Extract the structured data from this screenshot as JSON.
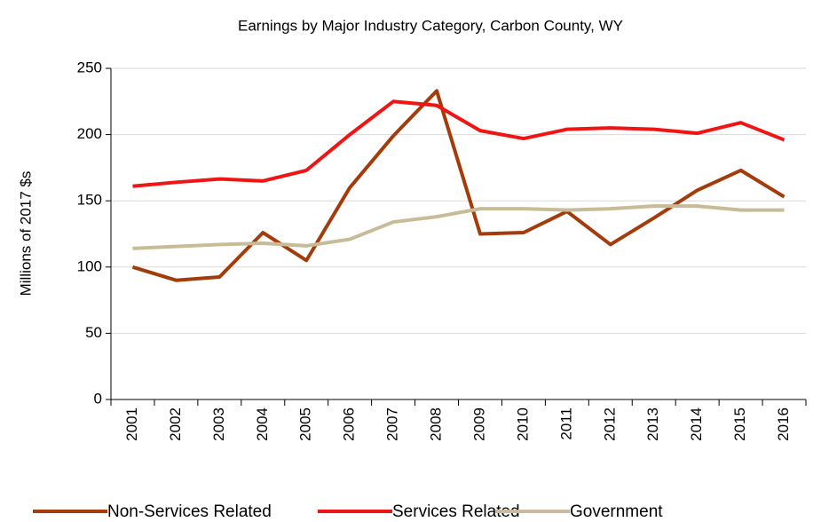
{
  "chart_data": {
    "type": "line",
    "title": "Earnings by Major Industry Category, Carbon County, WY",
    "y_label": "Millions of 2017 $s",
    "categories": [
      "2001",
      "2002",
      "2003",
      "2004",
      "2005",
      "2006",
      "2007",
      "2008",
      "2009",
      "2010",
      "2011",
      "2012",
      "2013",
      "2014",
      "2015",
      "2016"
    ],
    "series": [
      {
        "name": "Non-Services Related",
        "color": "#a33b0b",
        "values": [
          100,
          90,
          92.5,
          126,
          105,
          160,
          199,
          233,
          125,
          126,
          142,
          117,
          137,
          158,
          173,
          153
        ]
      },
      {
        "name": "Services Related",
        "color": "#f01414",
        "values": [
          161,
          164,
          166.5,
          165,
          173,
          200,
          225,
          222,
          203,
          197,
          204,
          205,
          204,
          201,
          209,
          196
        ]
      },
      {
        "name": "Government",
        "color": "#c8bc98",
        "values": [
          114,
          115.5,
          117,
          118,
          116,
          121,
          134,
          138,
          144,
          144,
          143,
          144,
          146,
          146,
          143,
          143
        ]
      }
    ],
    "ylim": [
      0,
      250
    ],
    "yticks": [
      0,
      50,
      100,
      150,
      200,
      250
    ],
    "grid": true,
    "legend": "bottom"
  }
}
